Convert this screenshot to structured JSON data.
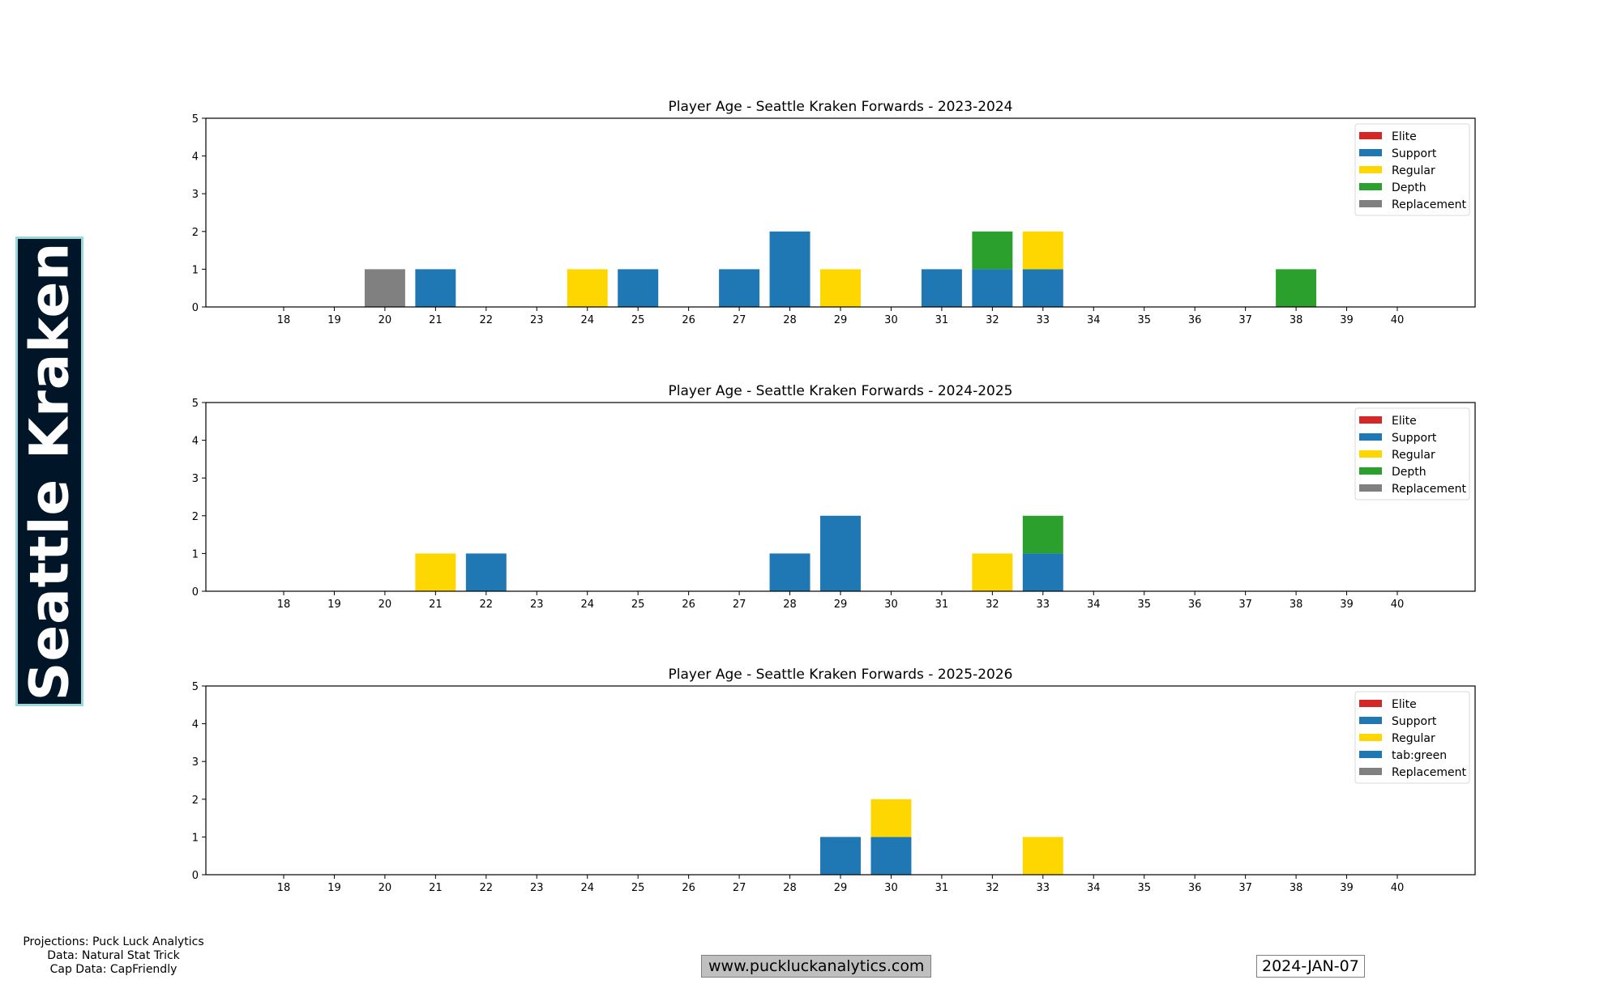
{
  "team_label": "Seattle Kraken",
  "footer": {
    "credits": [
      "Projections: Puck Luck Analytics",
      "Data: Natural Stat Trick",
      "Cap Data: CapFriendly"
    ],
    "website": "www.puckluckanalytics.com",
    "date": "2024-JAN-07"
  },
  "chart_data": [
    {
      "type": "bar",
      "stacked": true,
      "title": "Player Age - Seattle Kraken Forwards - 2023-2024",
      "categories": [
        18,
        19,
        20,
        21,
        22,
        23,
        24,
        25,
        26,
        27,
        28,
        29,
        30,
        31,
        32,
        33,
        34,
        35,
        36,
        37,
        38,
        39,
        40
      ],
      "ylim": [
        0,
        5
      ],
      "yticks": [
        0,
        1,
        2,
        3,
        4,
        5
      ],
      "legend_position": "top-right",
      "series": [
        {
          "name": "Elite",
          "color": "#d62728",
          "values": {}
        },
        {
          "name": "Support",
          "color": "#1f77b4",
          "values": {
            "21": 1,
            "25": 1,
            "27": 1,
            "28": 2,
            "31": 1,
            "32": 1,
            "33": 1
          }
        },
        {
          "name": "Regular",
          "color": "#ffd700",
          "values": {
            "24": 1,
            "29": 1,
            "33": 1
          }
        },
        {
          "name": "Depth",
          "color": "#2ca02c",
          "values": {
            "32": 1,
            "38": 1
          }
        },
        {
          "name": "Replacement",
          "color": "#808080",
          "values": {
            "20": 1
          }
        }
      ]
    },
    {
      "type": "bar",
      "stacked": true,
      "title": "Player Age - Seattle Kraken Forwards - 2024-2025",
      "categories": [
        18,
        19,
        20,
        21,
        22,
        23,
        24,
        25,
        26,
        27,
        28,
        29,
        30,
        31,
        32,
        33,
        34,
        35,
        36,
        37,
        38,
        39,
        40
      ],
      "ylim": [
        0,
        5
      ],
      "yticks": [
        0,
        1,
        2,
        3,
        4,
        5
      ],
      "legend_position": "top-right",
      "series": [
        {
          "name": "Elite",
          "color": "#d62728",
          "values": {}
        },
        {
          "name": "Support",
          "color": "#1f77b4",
          "values": {
            "22": 1,
            "28": 1,
            "29": 2,
            "33": 1
          }
        },
        {
          "name": "Regular",
          "color": "#ffd700",
          "values": {
            "21": 1,
            "32": 1
          }
        },
        {
          "name": "Depth",
          "color": "#2ca02c",
          "values": {
            "33": 1
          }
        },
        {
          "name": "Replacement",
          "color": "#808080",
          "values": {}
        }
      ]
    },
    {
      "type": "bar",
      "stacked": true,
      "title": "Player Age - Seattle Kraken Forwards - 2025-2026",
      "categories": [
        18,
        19,
        20,
        21,
        22,
        23,
        24,
        25,
        26,
        27,
        28,
        29,
        30,
        31,
        32,
        33,
        34,
        35,
        36,
        37,
        38,
        39,
        40
      ],
      "ylim": [
        0,
        5
      ],
      "yticks": [
        0,
        1,
        2,
        3,
        4,
        5
      ],
      "legend_position": "top-right",
      "series": [
        {
          "name": "Elite",
          "color": "#d62728",
          "values": {}
        },
        {
          "name": "Support",
          "color": "#1f77b4",
          "values": {
            "29": 1,
            "30": 1
          }
        },
        {
          "name": "Regular",
          "color": "#ffd700",
          "values": {
            "30": 1,
            "33": 1
          }
        },
        {
          "name": "tab:green",
          "color": "#1f77b4",
          "values": {}
        },
        {
          "name": "Replacement",
          "color": "#808080",
          "values": {}
        }
      ]
    }
  ]
}
